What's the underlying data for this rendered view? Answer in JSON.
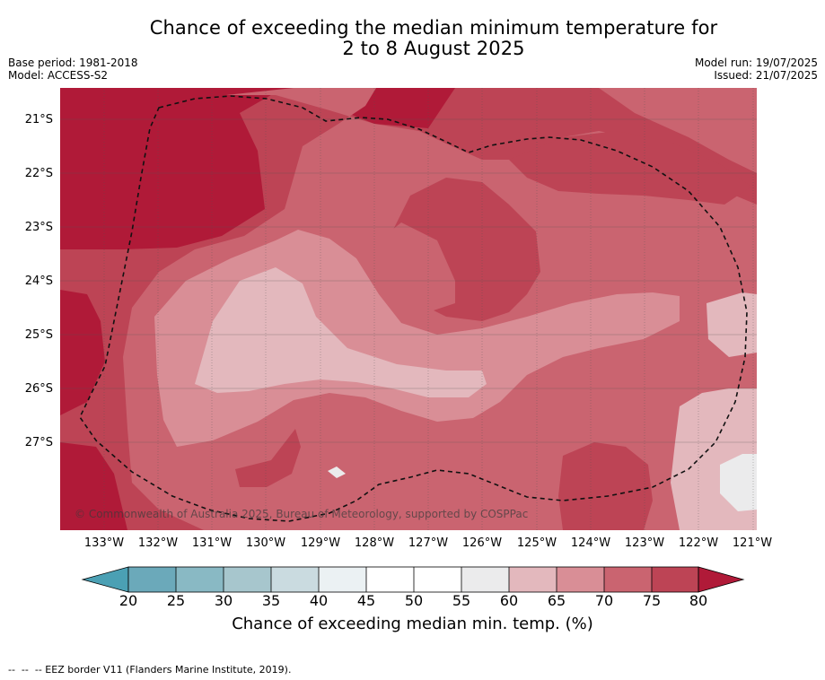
{
  "title": {
    "line1": "Chance of exceeding the median minimum temperature for",
    "line2": "2 to 8 August 2025"
  },
  "meta_left": {
    "base_period": "Base period: 1981-2018",
    "model": "Model: ACCESS-S2"
  },
  "meta_right": {
    "model_run": "Model run: 19/07/2025",
    "issued": "Issued: 21/07/2025"
  },
  "map": {
    "copyright": "© Commonwealth of Australia 2025, Bureau of Meteorology, supported by COSPPac",
    "lat_labels": [
      "21°S",
      "22°S",
      "23°S",
      "24°S",
      "25°S",
      "26°S",
      "27°S"
    ],
    "lon_labels": [
      "133°W",
      "132°W",
      "131°W",
      "130°W",
      "129°W",
      "128°W",
      "127°W",
      "126°W",
      "125°W",
      "124°W",
      "123°W",
      "122°W",
      "121°W"
    ],
    "colors": {
      "over80": "#b01a38",
      "75_80": "#bd4455",
      "70_75": "#ca6470",
      "65_70": "#d98e96",
      "60_65": "#e3b8bd",
      "55_60": "#ebebec",
      "45_55": "#ffffff",
      "40_45": "#ebf1f3",
      "35_40": "#cadbe0",
      "30_35": "#a7c6cd",
      "25_30": "#89b9c4",
      "20_25": "#6ba9ba",
      "under20": "#4ba0b4"
    }
  },
  "colorbar": {
    "ticks": [
      "20",
      "25",
      "30",
      "35",
      "40",
      "45",
      "50",
      "55",
      "60",
      "65",
      "70",
      "75",
      "80"
    ],
    "label": "Chance of exceeding median min. temp. (%)"
  },
  "footer": "--  --  -- EEZ border V11 (Flanders Marine Institute, 2019)."
}
